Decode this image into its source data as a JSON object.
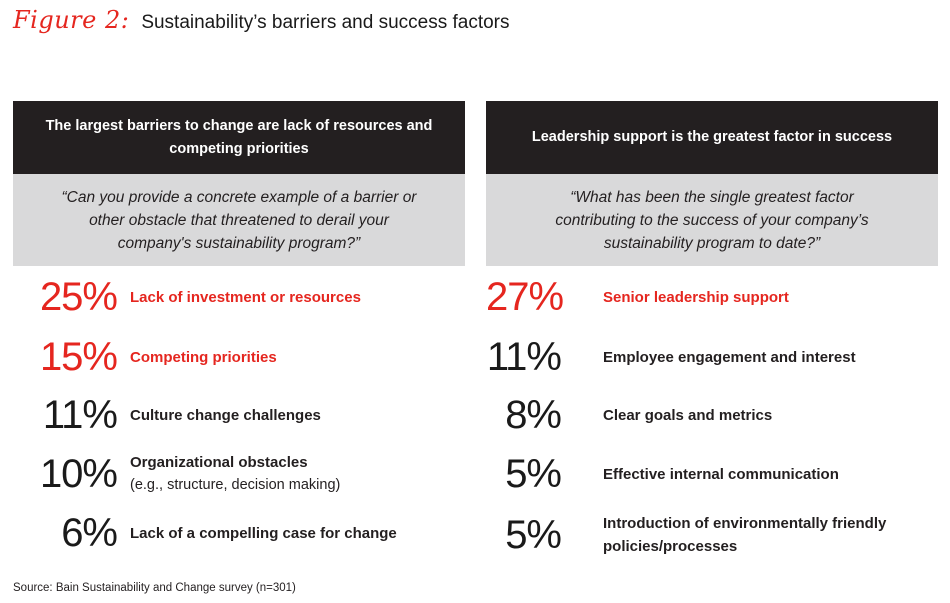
{
  "figure": {
    "label": "Figure 2:",
    "title": "Sustainability’s barriers and success factors"
  },
  "left_panel": {
    "heading": "The largest barriers to change are lack of resources and competing priorities",
    "question": "“Can you provide a concrete example of a barrier or other obstacle that threatened to derail your company's sustainability program?”",
    "items": [
      {
        "pct": "25%",
        "label": "Lack of investment or resources",
        "sub": "",
        "highlight": true
      },
      {
        "pct": "15%",
        "label": "Competing priorities",
        "sub": "",
        "highlight": true
      },
      {
        "pct": "11%",
        "label": "Culture change challenges",
        "sub": "",
        "highlight": false
      },
      {
        "pct": "10%",
        "label": "Organizational obstacles",
        "sub": "(e.g., structure, decision making)",
        "highlight": false
      },
      {
        "pct": "6%",
        "label": "Lack of a compelling case for change",
        "sub": "",
        "highlight": false
      }
    ]
  },
  "right_panel": {
    "heading": "Leadership support is the greatest factor in success",
    "question": "“What has been the single greatest factor contributing to the success of your company’s sustainability program to date?”",
    "items": [
      {
        "pct": "27%",
        "label": "Senior leadership support",
        "sub": "",
        "highlight": true
      },
      {
        "pct": "11%",
        "label": "Employee engagement and interest",
        "sub": "",
        "highlight": false
      },
      {
        "pct": "8%",
        "label": "Clear goals and metrics",
        "sub": "",
        "highlight": false
      },
      {
        "pct": "5%",
        "label": "Effective internal communication",
        "sub": "",
        "highlight": false
      },
      {
        "pct": "5%",
        "label": "Introduction of  environmentally friendly policies/processes",
        "sub": "",
        "highlight": false
      }
    ]
  },
  "source": "Source: Bain Sustainability and Change survey (n=301)",
  "colors": {
    "accent_red": "#e5261f",
    "header_dark": "#231f20",
    "question_gray": "#d9d9da"
  }
}
